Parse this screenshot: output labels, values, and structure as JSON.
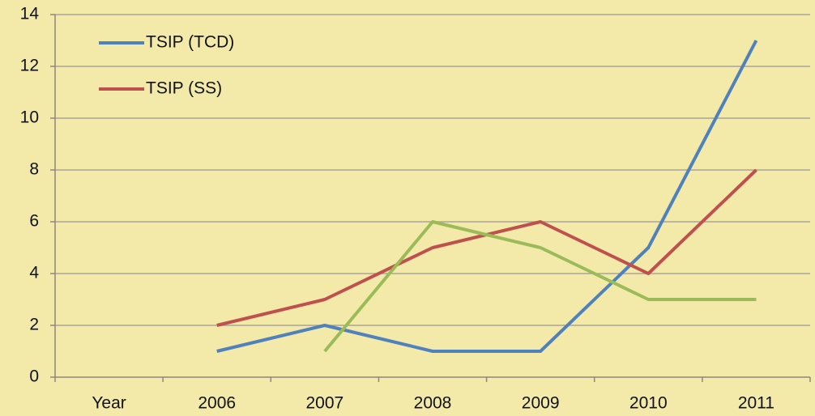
{
  "chart_data": {
    "type": "line",
    "categories": [
      "Year",
      "2006",
      "2007",
      "2008",
      "2009",
      "2010",
      "2011"
    ],
    "series": [
      {
        "name": "TSIP (TCD)",
        "color": "#4f81bd",
        "values": [
          null,
          1,
          2,
          1,
          1,
          5,
          13
        ]
      },
      {
        "name": "TSIP (SS)",
        "color": "#c0504d",
        "values": [
          null,
          2,
          3,
          5,
          6,
          4,
          8
        ]
      },
      {
        "color": "#9bbb59",
        "values": [
          null,
          null,
          1,
          6,
          5,
          3,
          3
        ]
      }
    ],
    "ylim": [
      0,
      14
    ],
    "yticks": [
      0,
      2,
      4,
      6,
      8,
      10,
      12,
      14
    ],
    "grid": true,
    "legend": "top-left"
  }
}
